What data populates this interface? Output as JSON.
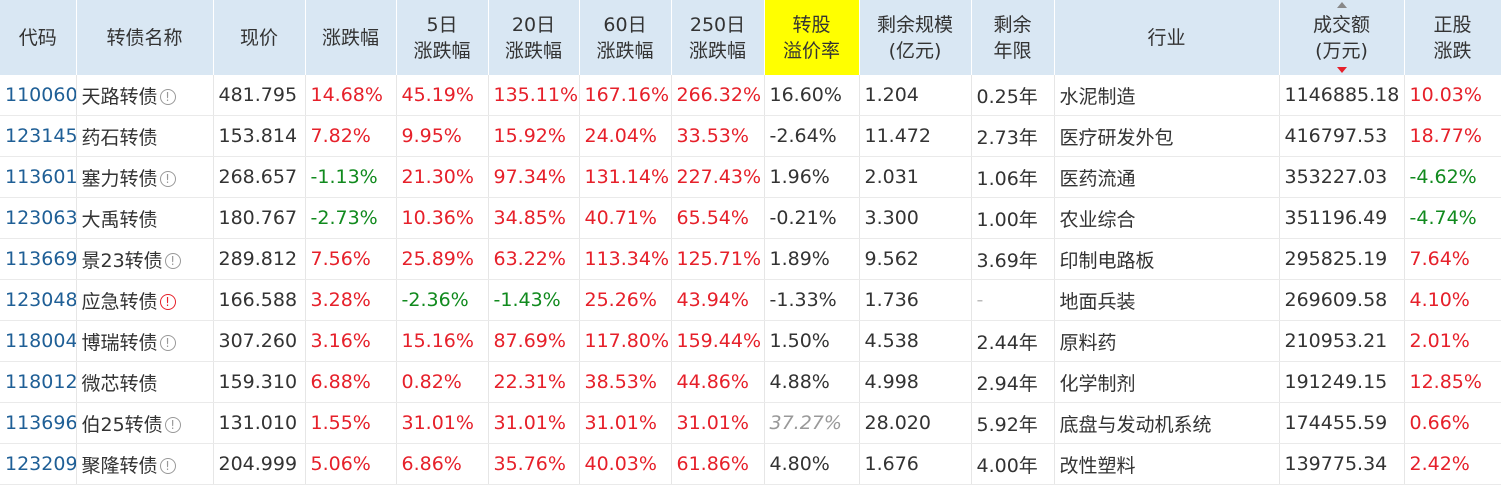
{
  "headers": [
    "代码",
    "转债名称",
    "现价",
    "涨跌幅",
    "5日\n涨跌幅",
    "20日\n涨跌幅",
    "60日\n涨跌幅",
    "250日\n涨跌幅",
    "转股\n溢价率",
    "剩余规模\n(亿元)",
    "剩余\n年限",
    "行业",
    "成交额\n(万元)",
    "正股\n涨跌"
  ],
  "highlight_color": "#ffff00",
  "rows": [
    {
      "code": "110060",
      "name": "天路转债",
      "icon": "info-icon",
      "price": "481.795",
      "chg": "14.68%",
      "chg5": "45.19%",
      "chg20": "135.11%",
      "chg60": "167.16%",
      "chg250": "266.32%",
      "premium": "16.60%",
      "size": "1.204",
      "years": "0.25年",
      "industry": "水泥制造",
      "volume": "1146885.18",
      "stock_chg": "10.03%"
    },
    {
      "code": "123145",
      "name": "药石转债",
      "icon": "",
      "price": "153.814",
      "chg": "7.82%",
      "chg5": "9.95%",
      "chg20": "15.92%",
      "chg60": "24.04%",
      "chg250": "33.53%",
      "premium": "-2.64%",
      "size": "11.472",
      "years": "2.73年",
      "industry": "医疗研发外包",
      "volume": "416797.53",
      "stock_chg": "18.77%"
    },
    {
      "code": "113601",
      "name": "塞力转债",
      "icon": "info-icon",
      "price": "268.657",
      "chg": "-1.13%",
      "chg5": "21.30%",
      "chg20": "97.34%",
      "chg60": "131.14%",
      "chg250": "227.43%",
      "premium": "1.96%",
      "size": "2.031",
      "years": "1.06年",
      "industry": "医药流通",
      "volume": "353227.03",
      "stock_chg": "-4.62%"
    },
    {
      "code": "123063",
      "name": "大禹转债",
      "icon": "",
      "price": "180.767",
      "chg": "-2.73%",
      "chg5": "10.36%",
      "chg20": "34.85%",
      "chg60": "40.71%",
      "chg250": "65.54%",
      "premium": "-0.21%",
      "size": "3.300",
      "years": "1.00年",
      "industry": "农业综合",
      "volume": "351196.49",
      "stock_chg": "-4.74%"
    },
    {
      "code": "113669",
      "name": "景23转债",
      "icon": "info-icon",
      "price": "289.812",
      "chg": "7.56%",
      "chg5": "25.89%",
      "chg20": "63.22%",
      "chg60": "113.34%",
      "chg250": "125.71%",
      "premium": "1.89%",
      "size": "9.562",
      "years": "3.69年",
      "industry": "印制电路板",
      "volume": "295825.19",
      "stock_chg": "7.64%"
    },
    {
      "code": "123048",
      "name": "应急转债",
      "icon": "warning-icon",
      "price": "166.588",
      "chg": "3.28%",
      "chg5": "-2.36%",
      "chg20": "-1.43%",
      "chg60": "25.26%",
      "chg250": "43.94%",
      "premium": "-1.33%",
      "size": "1.736",
      "years": "-",
      "industry": "地面兵装",
      "volume": "269609.58",
      "stock_chg": "4.10%"
    },
    {
      "code": "118004",
      "name": "博瑞转债",
      "icon": "info-icon",
      "price": "307.260",
      "chg": "3.16%",
      "chg5": "15.16%",
      "chg20": "87.69%",
      "chg60": "117.80%",
      "chg250": "159.44%",
      "premium": "1.50%",
      "size": "4.538",
      "years": "2.44年",
      "industry": "原料药",
      "volume": "210953.21",
      "stock_chg": "2.01%"
    },
    {
      "code": "118012",
      "name": "微芯转债",
      "icon": "",
      "price": "159.310",
      "chg": "6.88%",
      "chg5": "0.82%",
      "chg20": "22.31%",
      "chg60": "38.53%",
      "chg250": "44.86%",
      "premium": "4.88%",
      "size": "4.998",
      "years": "2.94年",
      "industry": "化学制剂",
      "volume": "191249.15",
      "stock_chg": "12.85%"
    },
    {
      "code": "113696",
      "name": "伯25转债",
      "icon": "info-icon",
      "price": "131.010",
      "chg": "1.55%",
      "chg5": "31.01%",
      "chg20": "31.01%",
      "chg60": "31.01%",
      "chg250": "31.01%",
      "premium": "37.27%",
      "size": "28.020",
      "years": "5.92年",
      "industry": "底盘与发动机系统",
      "volume": "174455.59",
      "stock_chg": "0.66%"
    },
    {
      "code": "123209",
      "name": "聚隆转债",
      "icon": "info-icon",
      "price": "204.999",
      "chg": "5.06%",
      "chg5": "6.86%",
      "chg20": "35.76%",
      "chg60": "40.03%",
      "chg250": "61.86%",
      "premium": "4.80%",
      "size": "1.676",
      "years": "4.00年",
      "industry": "改性塑料",
      "volume": "139775.34",
      "stock_chg": "2.42%"
    }
  ]
}
